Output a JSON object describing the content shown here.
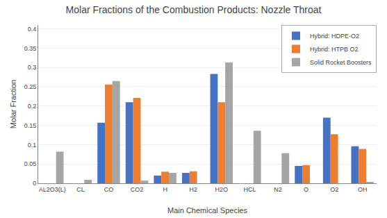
{
  "chart_data": {
    "type": "bar",
    "title": "Molar Fractions of the Combustion Products: Nozzle Throat",
    "xlabel": "Main Chemical Species",
    "ylabel": "Molar Fraction",
    "categories": [
      "AL2O3(L)",
      "CL",
      "CO",
      "CO2",
      "H",
      "H2",
      "H2O",
      "HCL",
      "N2",
      "O",
      "O2",
      "OH"
    ],
    "series": [
      {
        "name": "Hybrid: HDPE-O2",
        "color": "#4472C4",
        "values": [
          0.0,
          0.0,
          0.157,
          0.21,
          0.02,
          0.027,
          0.283,
          0.0,
          0.0,
          0.045,
          0.17,
          0.096
        ]
      },
      {
        "name": "Hybrid: HTPB O2",
        "color": "#ED7D31",
        "values": [
          0.0,
          0.0,
          0.256,
          0.221,
          0.03,
          0.031,
          0.21,
          0.0,
          0.0,
          0.047,
          0.127,
          0.089
        ]
      },
      {
        "name": "Solid Rocket Boosters",
        "color": "#A5A5A5",
        "values": [
          0.082,
          0.009,
          0.265,
          0.007,
          0.027,
          0.0,
          0.313,
          0.136,
          0.078,
          0.0,
          0.0,
          0.003
        ]
      }
    ],
    "ylim": [
      0,
      0.41
    ],
    "yticks": [
      0,
      0.05,
      0.1,
      0.15,
      0.2,
      0.25,
      0.3,
      0.35,
      0.4
    ],
    "grid": true,
    "legend": "upper right"
  }
}
